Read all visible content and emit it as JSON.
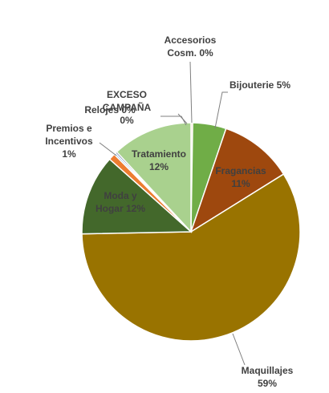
{
  "chart_data": {
    "type": "pie",
    "title": "",
    "slices": [
      {
        "name": "Accesorios Cosm.",
        "value": 0,
        "label_lines": [
          "Accesorios",
          "Cosm. 0%"
        ],
        "color": "#f4b183"
      },
      {
        "name": "Bijouterie",
        "value": 5,
        "label_lines": [
          "Bijouterie 5%"
        ],
        "color": "#70ad47"
      },
      {
        "name": "Fragancias",
        "value": 11,
        "label_lines": [
          "Fragancias",
          "11%"
        ],
        "color": "#9e480e"
      },
      {
        "name": "Maquillajes",
        "value": 59,
        "label_lines": [
          "Maquillajes",
          "59%"
        ],
        "color": "#997300"
      },
      {
        "name": "Moda y Hogar",
        "value": 12,
        "label_lines": [
          "Moda y",
          "Hogar 12%"
        ],
        "color": "#43682b"
      },
      {
        "name": "Premios e Incentivos",
        "value": 1,
        "label_lines": [
          "Premios e",
          "Incentivos",
          "1%"
        ],
        "color": "#ed7d31"
      },
      {
        "name": "Relojes",
        "value": 0,
        "label_lines": [
          "Relojes 0%"
        ],
        "color": "#5b9bd5"
      },
      {
        "name": "EXCESO CAMPAÑA",
        "value": 0,
        "label_lines": [
          "EXCESO",
          "CAMPAÑA",
          "0%"
        ],
        "color": "#264478"
      },
      {
        "name": "Tratamiento",
        "value": 12,
        "label_lines": [
          "Tratamiento",
          "12%"
        ],
        "color": "#a9d18e"
      }
    ],
    "start_angle_deg": 0,
    "direction": "clockwise",
    "legend": "none"
  }
}
